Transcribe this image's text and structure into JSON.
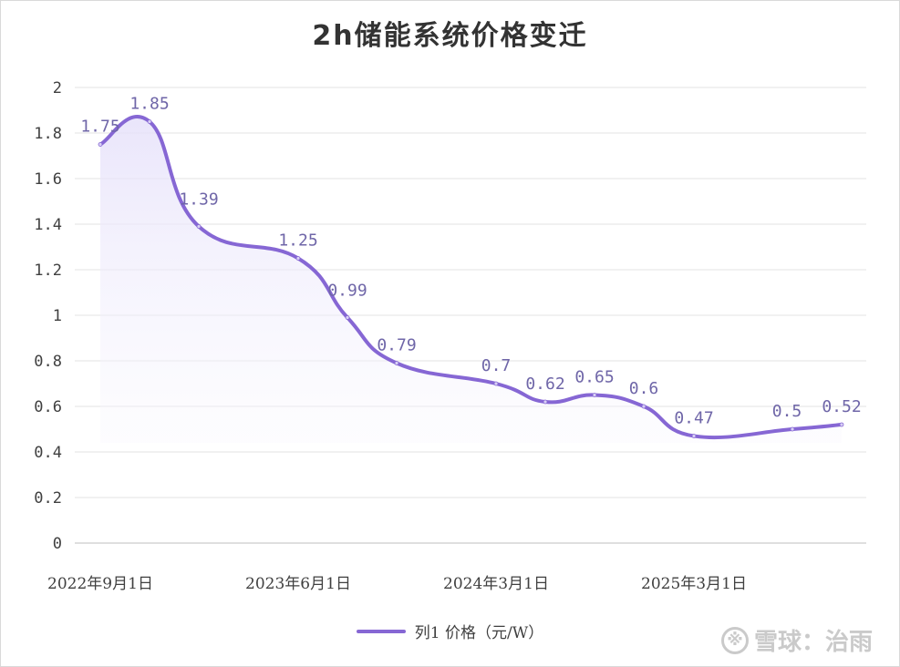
{
  "chart_data": {
    "type": "line",
    "title": "2h储能系统价格变迁",
    "x_labels": [
      "2022年9月1日",
      "2023年6月1日",
      "2024年3月1日",
      "2025年3月1日"
    ],
    "y_ticks": [
      "0",
      "0.2",
      "0.4",
      "0.6",
      "0.8",
      "1",
      "1.2",
      "1.4",
      "1.6",
      "1.8",
      "2"
    ],
    "ylim": [
      0,
      2
    ],
    "grid": true,
    "legend_position": "bottom",
    "series": [
      {
        "name": "列1 价格（元/W）",
        "color": "#8667d4",
        "values": [
          1.75,
          1.85,
          1.39,
          1.25,
          0.99,
          0.79,
          0.7,
          0.62,
          0.65,
          0.6,
          0.47,
          0.5,
          0.52
        ],
        "labels": [
          "1.75",
          "1.85",
          "1.39",
          "1.25",
          "0.99",
          "0.79",
          "0.7",
          "0.62",
          "0.65",
          "0.6",
          "0.47",
          "0.5",
          "0.52"
        ]
      }
    ]
  },
  "watermark": {
    "logo_glyph": "※",
    "text": "雪球：治雨"
  }
}
